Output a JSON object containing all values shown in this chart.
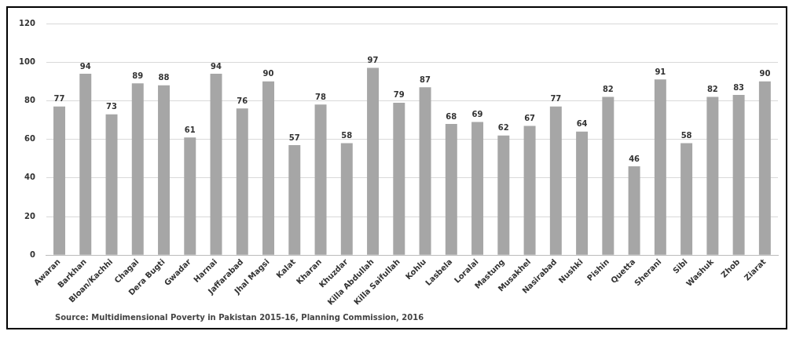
{
  "chart_data": {
    "type": "bar",
    "categories": [
      "Awaran",
      "Barkhan",
      "Bloan/Kachhi",
      "Chagai",
      "Dera Bugti",
      "Gwadar",
      "Harnai",
      "Jaffarabad",
      "Jhal Magsi",
      "Kalat",
      "Kharan",
      "Khuzdar",
      "Killa Abdullah",
      "Killa Saifullah",
      "Kohlu",
      "Lasbela",
      "Loralai",
      "Mastung",
      "Musakhel",
      "Nasirabad",
      "Nushki",
      "Pishin",
      "Quetta",
      "Sherani",
      "Sibi",
      "Washuk",
      "Zhob",
      "Ziarat"
    ],
    "values": [
      77,
      94,
      73,
      89,
      88,
      61,
      94,
      76,
      90,
      57,
      78,
      58,
      97,
      79,
      87,
      68,
      69,
      62,
      67,
      77,
      64,
      82,
      46,
      91,
      58,
      82,
      83,
      90
    ],
    "color": "#a6a6a6",
    "ylim": [
      0,
      120
    ],
    "yticks": [
      0,
      20,
      40,
      60,
      80,
      100,
      120
    ],
    "grid": "y",
    "data_labels": true,
    "annotations": [
      "Source:  Multidimensional  Poverty in Pakistan 2015-16, Planning Commission,  2016"
    ]
  }
}
